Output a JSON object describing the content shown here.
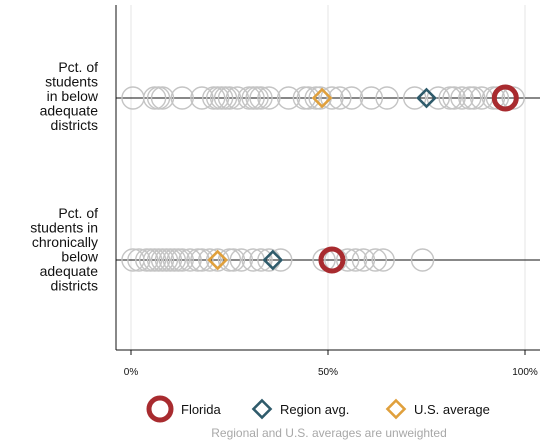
{
  "chart_data": {
    "type": "dot-strip",
    "xlim": [
      0,
      100
    ],
    "x_ticks": [
      {
        "value": 0,
        "label": "0%"
      },
      {
        "value": 50,
        "label": "50%"
      },
      {
        "value": 100,
        "label": "100%"
      }
    ],
    "grid": true,
    "legend_placement": "bottom",
    "rows": [
      {
        "label_lines": [
          "Pct. of",
          "students",
          "in below",
          "adequate",
          "districts"
        ],
        "other_states": [
          0.5,
          6,
          7,
          8,
          13,
          18,
          21,
          22,
          23,
          24,
          25,
          27,
          30,
          31,
          32,
          33,
          35,
          40,
          44,
          45,
          47,
          48,
          51,
          53,
          56,
          61,
          65,
          72,
          78,
          81,
          82,
          84,
          86,
          87,
          89,
          92,
          93,
          97
        ],
        "florida": 95,
        "region_avg": 75,
        "us_average": 48.5
      },
      {
        "label_lines": [
          "Pct. of",
          "students in",
          "chronically",
          "below",
          "adequate",
          "districts"
        ],
        "other_states": [
          0.5,
          2,
          4,
          5,
          6,
          7,
          8,
          9,
          10,
          11,
          12,
          13,
          15,
          17,
          18,
          20,
          22,
          25,
          26,
          28,
          31,
          33,
          35,
          38,
          49,
          52,
          55,
          57,
          59,
          62,
          64,
          74
        ],
        "florida": 51,
        "region_avg": 36,
        "us_average": 22
      }
    ],
    "legend": [
      {
        "key": "florida",
        "label": "Florida"
      },
      {
        "key": "region_avg",
        "label": "Region avg."
      },
      {
        "key": "us_average",
        "label": "U.S. average"
      }
    ],
    "note": "Regional and U.S. averages are unweighted"
  },
  "colors": {
    "florida": "#a82b2f",
    "region_avg": "#2f5b6b",
    "us_average": "#e0a03c",
    "other_states": "#c4c4c4",
    "grid": "#e6e6e6",
    "axis": "#111111"
  }
}
